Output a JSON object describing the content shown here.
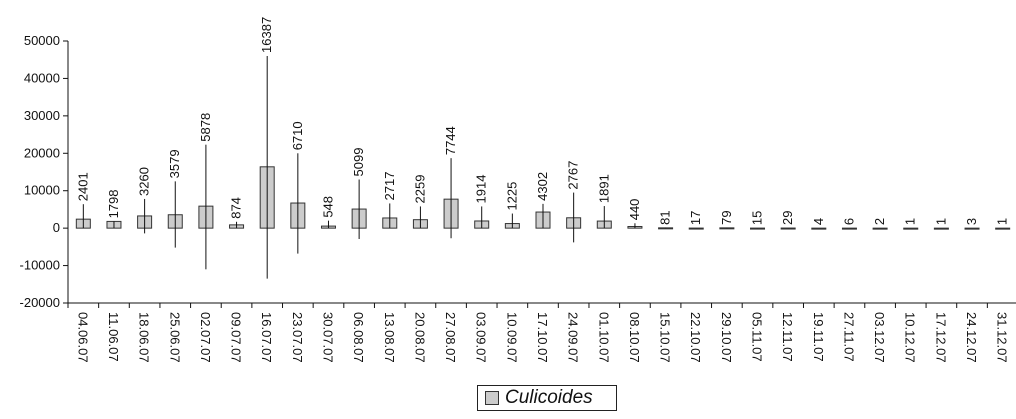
{
  "chart_data": {
    "type": "bar",
    "categories": [
      "04.06.07",
      "11.06.07",
      "18.06.07",
      "25.06.07",
      "02.07.07",
      "09.07.07",
      "16.07.07",
      "23.07.07",
      "30.07.07",
      "06.08.07",
      "13.08.07",
      "20.08.07",
      "27.08.07",
      "03.09.07",
      "10.09.07",
      "17.10.07",
      "24.09.07",
      "01.10.07",
      "08.10.07",
      "15.10.07",
      "22.10.07",
      "29.10.07",
      "05.11.07",
      "12.11.07",
      "19.11.07",
      "27.11.07",
      "03.12.07",
      "10.12.07",
      "17.12.07",
      "24.12.07",
      "31.12.07"
    ],
    "series": [
      {
        "name": "Culicoides",
        "values": [
          2401,
          1798,
          3260,
          3579,
          5878,
          874,
          16387,
          6710,
          548,
          5099,
          2717,
          2259,
          7744,
          1914,
          1225,
          4302,
          2767,
          1891,
          440,
          81,
          17,
          79,
          15,
          29,
          4,
          6,
          2,
          1,
          1,
          3,
          1
        ],
        "error_high": [
          6400,
          1000,
          7800,
          12500,
          22300,
          1700,
          46000,
          20000,
          2000,
          13000,
          6600,
          5800,
          18700,
          5800,
          3900,
          6500,
          9500,
          5900,
          1300,
          0,
          0,
          0,
          0,
          0,
          0,
          0,
          0,
          0,
          0,
          0,
          0
        ],
        "error_low": [
          0,
          0,
          -1400,
          -5200,
          -11000,
          0,
          -13500,
          -6800,
          0,
          -2900,
          0,
          0,
          -2700,
          0,
          0,
          0,
          -3800,
          0,
          0,
          0,
          0,
          0,
          0,
          0,
          0,
          0,
          0,
          0,
          0,
          0,
          0
        ]
      }
    ],
    "data_labels": [
      "2401",
      "1798",
      "3260",
      "3579",
      "5878",
      "874",
      "16387",
      "6710",
      "548",
      "5099",
      "2717",
      "2259",
      "7744",
      "1914",
      "1225",
      "4302",
      "2767",
      "1891",
      "440",
      "81",
      "17",
      "79",
      "15",
      "29",
      "4",
      "6",
      "2",
      "1",
      "1",
      "3",
      "1"
    ],
    "y_ticks": [
      "50000",
      "40000",
      "30000",
      "20000",
      "10000",
      "0",
      "-10000",
      "-20000"
    ],
    "ylim": [
      -20000,
      50000
    ],
    "title": "",
    "xlabel": "",
    "ylabel": "",
    "legend": {
      "position": "bottom",
      "label": "Culicoides"
    },
    "grid": false,
    "colors": {
      "bar_fill": "#cccccc",
      "bar_stroke": "#333333",
      "axis": "#111111",
      "error_bar": "#111111"
    }
  }
}
